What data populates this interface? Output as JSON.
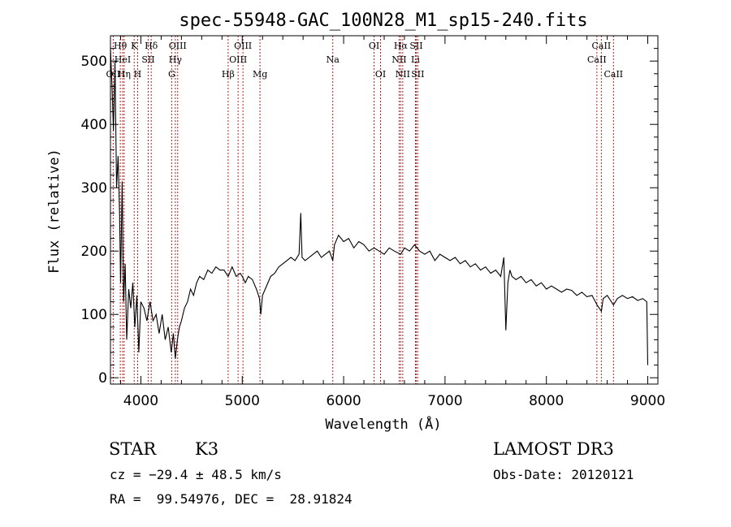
{
  "chart_data": {
    "type": "line",
    "title": "spec-55948-GAC_100N28_M1_sp15-240.fits",
    "xlabel": "Wavelength (Å)",
    "ylabel": "Flux (relative)",
    "xlim": [
      3700,
      9100
    ],
    "ylim": [
      -10,
      540
    ],
    "x_ticks": [
      4000,
      5000,
      6000,
      7000,
      8000,
      9000
    ],
    "y_ticks": [
      0,
      100,
      200,
      300,
      400,
      500
    ],
    "grid": false,
    "series": [
      {
        "points": [
          [
            3700,
            520
          ],
          [
            3715,
            460
          ],
          [
            3730,
            390
          ],
          [
            3745,
            500
          ],
          [
            3760,
            300
          ],
          [
            3775,
            350
          ],
          [
            3790,
            260
          ],
          [
            3800,
            150
          ],
          [
            3815,
            310
          ],
          [
            3830,
            120
          ],
          [
            3845,
            180
          ],
          [
            3860,
            60
          ],
          [
            3880,
            140
          ],
          [
            3900,
            110
          ],
          [
            3920,
            150
          ],
          [
            3940,
            80
          ],
          [
            3960,
            130
          ],
          [
            3980,
            40
          ],
          [
            4000,
            120
          ],
          [
            4030,
            110
          ],
          [
            4060,
            90
          ],
          [
            4090,
            120
          ],
          [
            4120,
            90
          ],
          [
            4150,
            100
          ],
          [
            4180,
            70
          ],
          [
            4210,
            100
          ],
          [
            4240,
            60
          ],
          [
            4270,
            80
          ],
          [
            4300,
            40
          ],
          [
            4320,
            70
          ],
          [
            4340,
            30
          ],
          [
            4360,
            60
          ],
          [
            4380,
            80
          ],
          [
            4400,
            90
          ],
          [
            4430,
            110
          ],
          [
            4460,
            120
          ],
          [
            4490,
            140
          ],
          [
            4520,
            130
          ],
          [
            4550,
            150
          ],
          [
            4580,
            160
          ],
          [
            4620,
            155
          ],
          [
            4660,
            170
          ],
          [
            4700,
            165
          ],
          [
            4740,
            175
          ],
          [
            4780,
            170
          ],
          [
            4820,
            170
          ],
          [
            4861,
            160
          ],
          [
            4900,
            175
          ],
          [
            4940,
            160
          ],
          [
            4980,
            165
          ],
          [
            5000,
            160
          ],
          [
            5030,
            150
          ],
          [
            5060,
            160
          ],
          [
            5100,
            155
          ],
          [
            5140,
            140
          ],
          [
            5170,
            125
          ],
          [
            5183,
            100
          ],
          [
            5200,
            130
          ],
          [
            5240,
            145
          ],
          [
            5280,
            160
          ],
          [
            5320,
            165
          ],
          [
            5360,
            175
          ],
          [
            5400,
            180
          ],
          [
            5440,
            185
          ],
          [
            5480,
            190
          ],
          [
            5520,
            185
          ],
          [
            5560,
            195
          ],
          [
            5577,
            260
          ],
          [
            5590,
            190
          ],
          [
            5620,
            185
          ],
          [
            5660,
            190
          ],
          [
            5700,
            195
          ],
          [
            5740,
            200
          ],
          [
            5780,
            190
          ],
          [
            5820,
            195
          ],
          [
            5860,
            200
          ],
          [
            5893,
            185
          ],
          [
            5910,
            210
          ],
          [
            5950,
            225
          ],
          [
            6000,
            215
          ],
          [
            6050,
            220
          ],
          [
            6100,
            205
          ],
          [
            6150,
            215
          ],
          [
            6200,
            210
          ],
          [
            6250,
            200
          ],
          [
            6300,
            205
          ],
          [
            6350,
            200
          ],
          [
            6400,
            195
          ],
          [
            6450,
            205
          ],
          [
            6500,
            200
          ],
          [
            6563,
            195
          ],
          [
            6600,
            205
          ],
          [
            6650,
            200
          ],
          [
            6700,
            210
          ],
          [
            6750,
            200
          ],
          [
            6800,
            195
          ],
          [
            6850,
            200
          ],
          [
            6900,
            185
          ],
          [
            6950,
            195
          ],
          [
            7000,
            190
          ],
          [
            7050,
            185
          ],
          [
            7100,
            190
          ],
          [
            7150,
            180
          ],
          [
            7200,
            185
          ],
          [
            7250,
            175
          ],
          [
            7300,
            180
          ],
          [
            7350,
            170
          ],
          [
            7400,
            175
          ],
          [
            7450,
            165
          ],
          [
            7500,
            170
          ],
          [
            7550,
            160
          ],
          [
            7580,
            190
          ],
          [
            7600,
            75
          ],
          [
            7620,
            150
          ],
          [
            7640,
            170
          ],
          [
            7660,
            160
          ],
          [
            7700,
            155
          ],
          [
            7750,
            160
          ],
          [
            7800,
            150
          ],
          [
            7850,
            155
          ],
          [
            7900,
            145
          ],
          [
            7950,
            150
          ],
          [
            8000,
            140
          ],
          [
            8050,
            145
          ],
          [
            8100,
            140
          ],
          [
            8150,
            135
          ],
          [
            8200,
            140
          ],
          [
            8250,
            138
          ],
          [
            8300,
            130
          ],
          [
            8350,
            135
          ],
          [
            8400,
            128
          ],
          [
            8450,
            130
          ],
          [
            8500,
            115
          ],
          [
            8542,
            105
          ],
          [
            8560,
            125
          ],
          [
            8600,
            130
          ],
          [
            8662,
            115
          ],
          [
            8700,
            125
          ],
          [
            8750,
            130
          ],
          [
            8800,
            125
          ],
          [
            8850,
            128
          ],
          [
            8900,
            122
          ],
          [
            8950,
            125
          ],
          [
            8990,
            120
          ],
          [
            9000,
            20
          ]
        ]
      }
    ],
    "spectral_lines": [
      {
        "label": "OII",
        "x": 3727,
        "row": 2
      },
      {
        "label": "Hθ",
        "x": 3797,
        "row": 0
      },
      {
        "label": "HeI",
        "x": 3820,
        "row": 1
      },
      {
        "label": "K",
        "x": 3934,
        "row": 0
      },
      {
        "label": "Hη",
        "x": 3835,
        "row": 2
      },
      {
        "label": "H",
        "x": 3968,
        "row": 2
      },
      {
        "label": "SII",
        "x": 4072,
        "row": 1
      },
      {
        "label": "Hδ",
        "x": 4102,
        "row": 0
      },
      {
        "label": "OIII",
        "x": 4363,
        "row": 0
      },
      {
        "label": "Hγ",
        "x": 4340,
        "row": 1
      },
      {
        "label": "G",
        "x": 4304,
        "row": 2
      },
      {
        "label": "Hβ",
        "x": 4861,
        "row": 2
      },
      {
        "label": "OIII",
        "x": 4959,
        "row": 1
      },
      {
        "label": "OIII",
        "x": 5007,
        "row": 0
      },
      {
        "label": "Mg",
        "x": 5175,
        "row": 2
      },
      {
        "label": "Na",
        "x": 5893,
        "row": 1
      },
      {
        "label": "OI",
        "x": 6300,
        "row": 0
      },
      {
        "label": "OI",
        "x": 6364,
        "row": 2
      },
      {
        "label": "NII",
        "x": 6548,
        "row": 1
      },
      {
        "label": "Hα",
        "x": 6563,
        "row": 0
      },
      {
        "label": "NII",
        "x": 6583,
        "row": 2
      },
      {
        "label": "SII",
        "x": 6716,
        "row": 0
      },
      {
        "label": "Li",
        "x": 6708,
        "row": 1
      },
      {
        "label": "SII",
        "x": 6731,
        "row": 2
      },
      {
        "label": "CaII",
        "x": 8498,
        "row": 1
      },
      {
        "label": "CaII",
        "x": 8542,
        "row": 0
      },
      {
        "label": "CaII",
        "x": 8662,
        "row": 2
      }
    ],
    "colors": {
      "spectrum": "#000000",
      "lines": "#b22222",
      "axes": "#000000"
    }
  },
  "info": {
    "object_type": "STAR",
    "subclass": "K3",
    "survey": "LAMOST DR3",
    "redshift": "cz = −29.4 ± 48.5 km/s",
    "obs_date": "Obs-Date: 20120121",
    "coords": "RA =  99.54976, DEC =  28.91824"
  }
}
